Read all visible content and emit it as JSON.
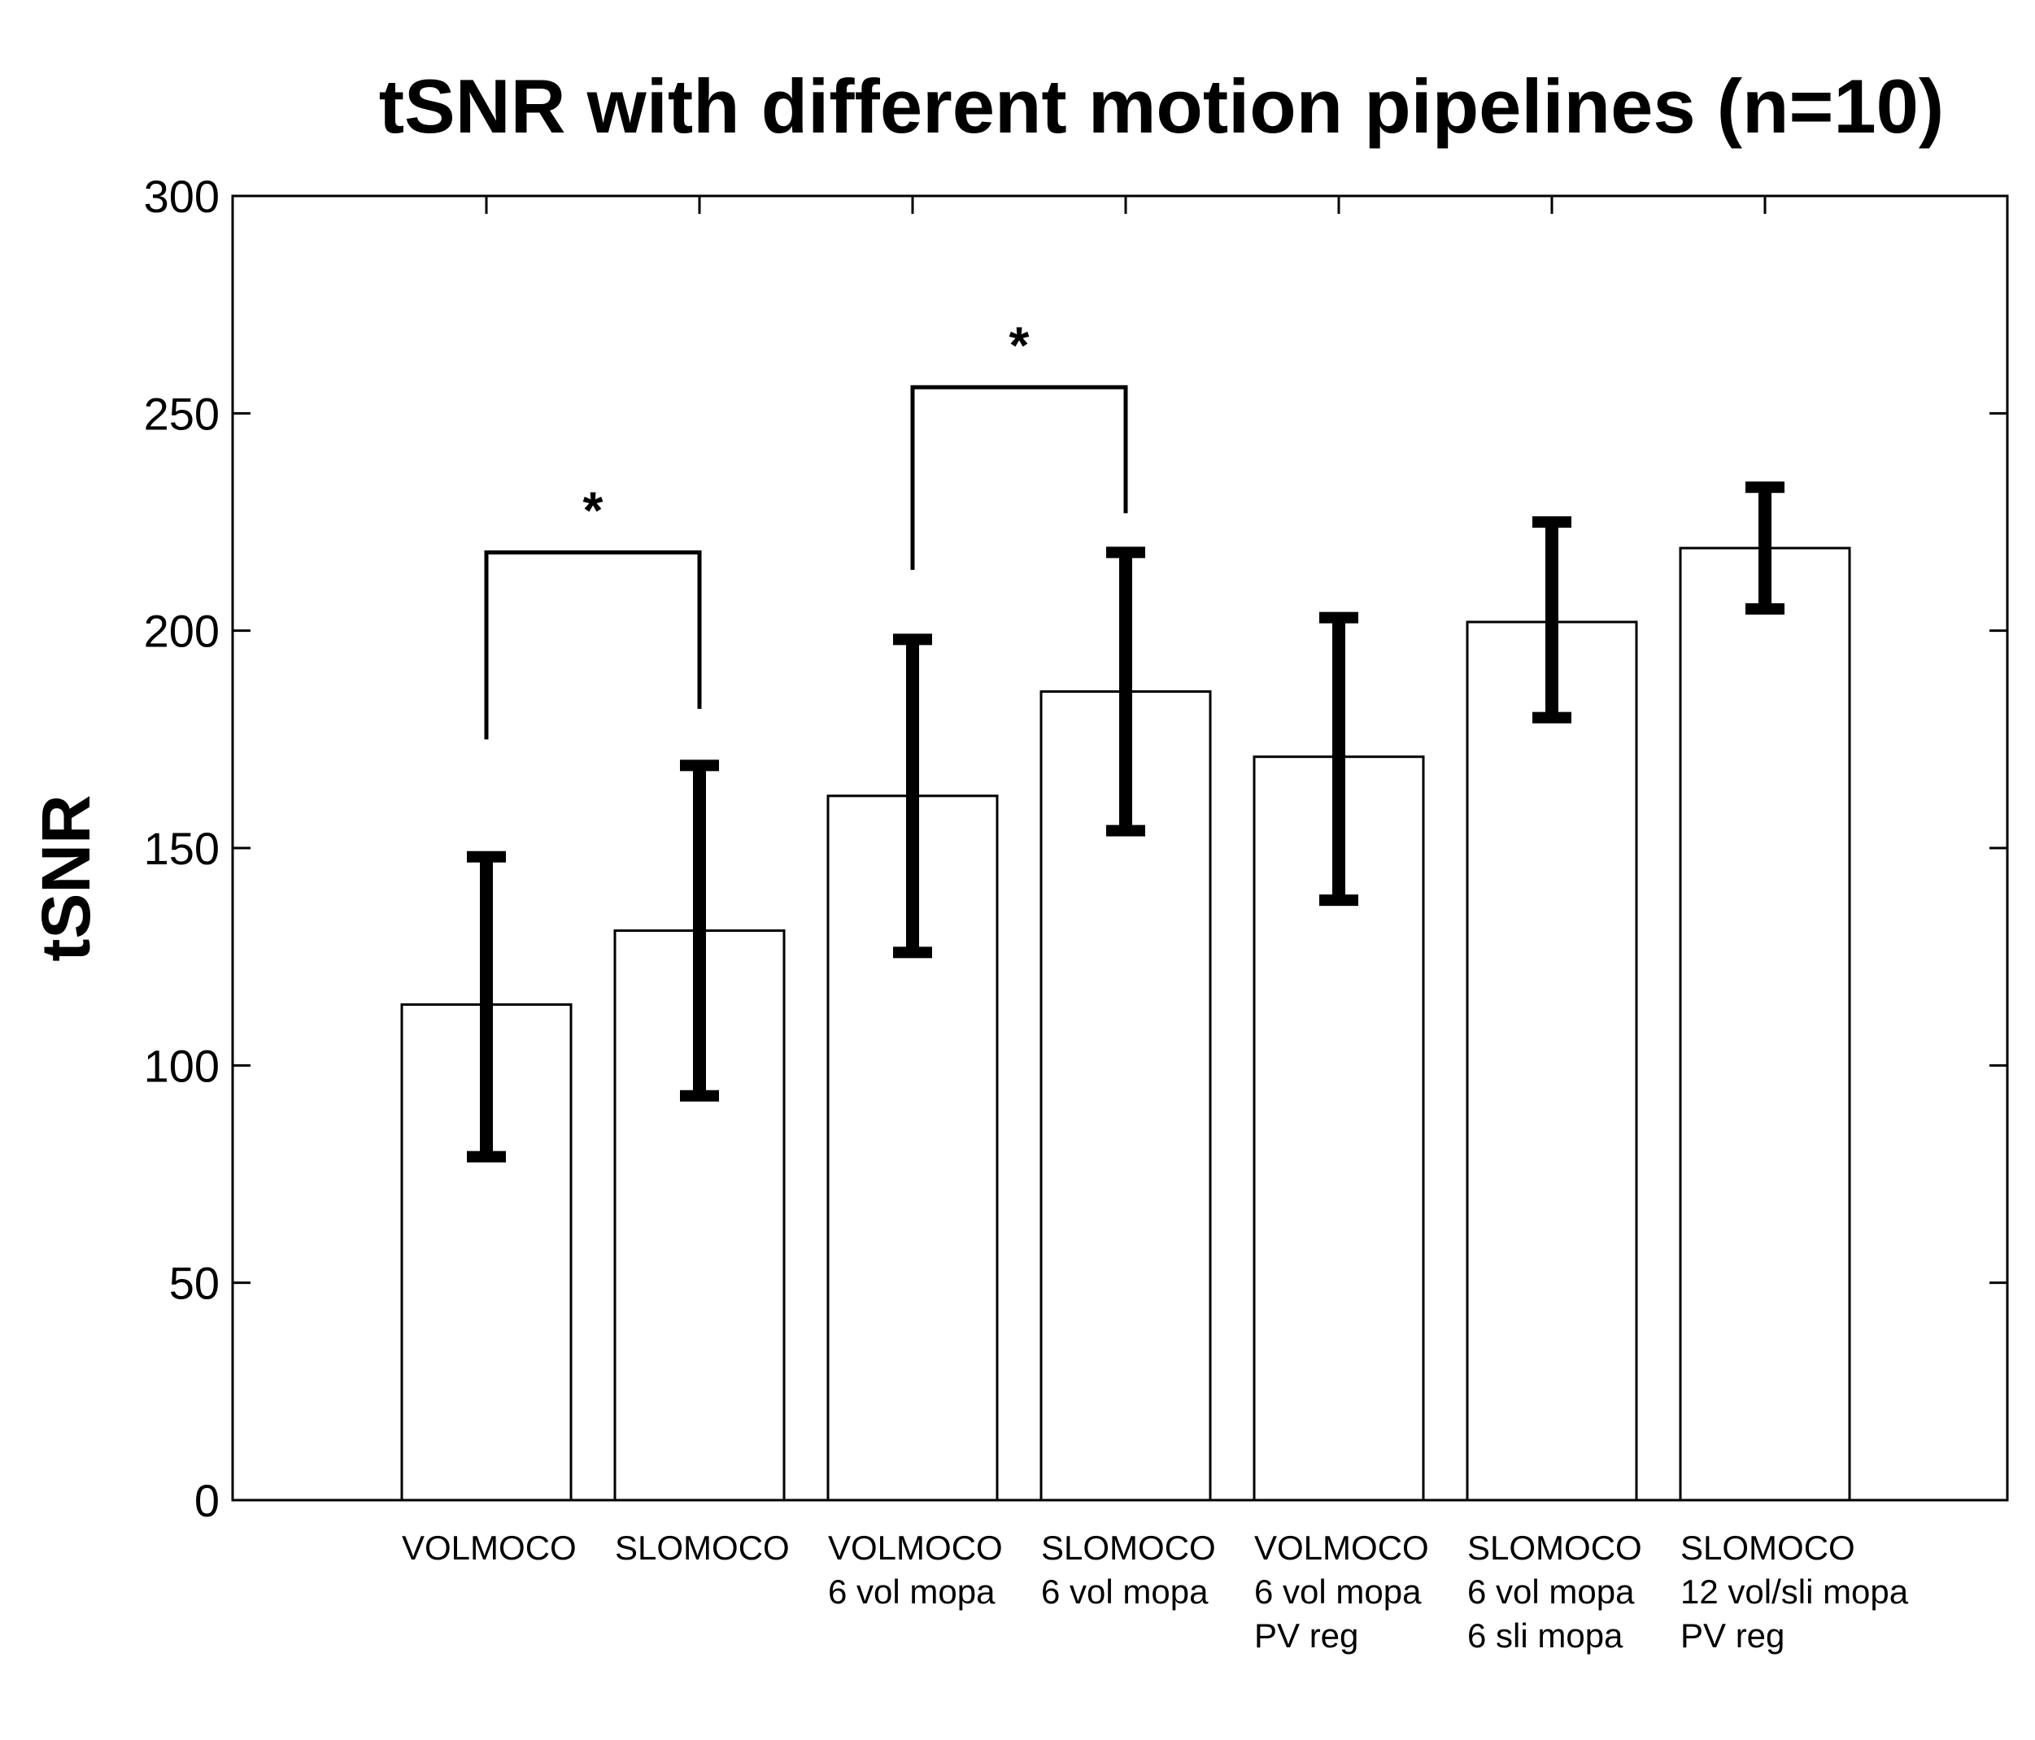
{
  "chart_data": {
    "type": "bar",
    "title": "tSNR with different motion pipelines (n=10)",
    "ylabel": "tSNR",
    "xlabel": "",
    "ylim": [
      0,
      300
    ],
    "yticks": [
      0,
      50,
      100,
      150,
      200,
      250,
      300
    ],
    "categories": [
      [
        "VOLMOCO"
      ],
      [
        "SLOMOCO"
      ],
      [
        "VOLMOCO",
        "6 vol mopa"
      ],
      [
        "SLOMOCO",
        "6 vol mopa"
      ],
      [
        "VOLMOCO",
        "6 vol mopa",
        "PV reg"
      ],
      [
        "SLOMOCO",
        "6 vol mopa",
        "6 sli mopa"
      ],
      [
        "SLOMOCO",
        "12 vol/sli mopa",
        "PV reg"
      ]
    ],
    "values": [
      114,
      131,
      162,
      186,
      171,
      202,
      219
    ],
    "error_low": [
      79,
      93,
      126,
      154,
      138,
      180,
      205
    ],
    "error_high": [
      148,
      169,
      198,
      218,
      203,
      225,
      233
    ],
    "significance": [
      {
        "from": 0,
        "to": 1,
        "bracket_y": 218,
        "left_y": 175,
        "right_y": 182,
        "label": "*"
      },
      {
        "from": 2,
        "to": 3,
        "bracket_y": 256,
        "left_y": 214,
        "right_y": 227,
        "label": "*"
      }
    ],
    "grid": false,
    "legend": "none",
    "bar_fill": "#ffffff",
    "bar_edge": "#000000",
    "errorbar_color": "#000000"
  }
}
